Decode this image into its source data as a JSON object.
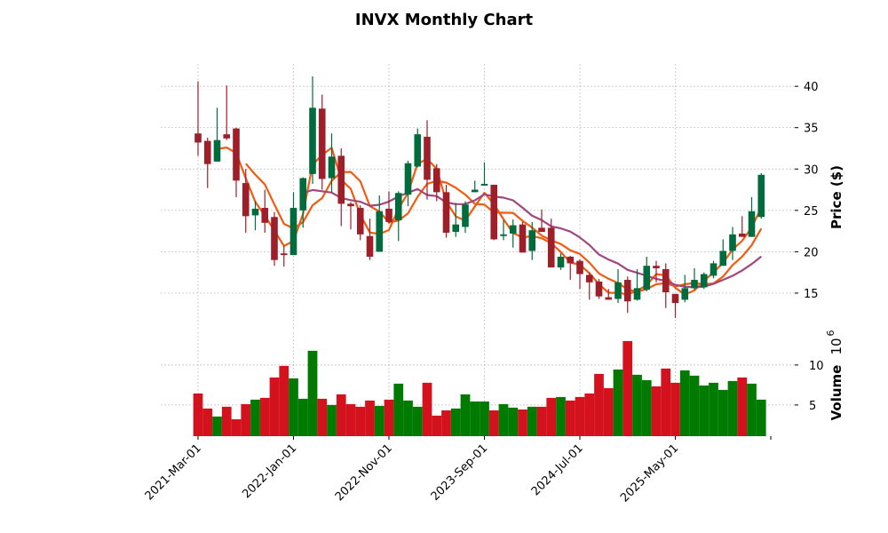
{
  "chart_data": {
    "type": "candlestick",
    "title": "INVX Monthly Chart",
    "ylabel": "Price ($)",
    "volume_label": "Volume",
    "volume_exponent": "6",
    "volume_base": "10",
    "ylim": [
      10.7,
      42.7
    ],
    "volume_ylim": [
      1.1,
      14.1
    ],
    "yticks": [
      15,
      20,
      25,
      30,
      35,
      40
    ],
    "volume_yticks": [
      5,
      10
    ],
    "grid": true,
    "start_month": "2021-03",
    "xticks": [
      {
        "index": 0,
        "label": "2021-Mar-01"
      },
      {
        "index": 10,
        "label": "2022-Jan-01"
      },
      {
        "index": 20,
        "label": "2022-Nov-01"
      },
      {
        "index": 30,
        "label": "2023-Sep-01"
      },
      {
        "index": 40,
        "label": "2024-Jul-01"
      },
      {
        "index": 50,
        "label": "2025-May-01"
      },
      {
        "index": 60,
        "label": ""
      }
    ],
    "moving_averages": [
      {
        "period": 3,
        "color": "#f15a0f"
      },
      {
        "period": 6,
        "color": "#f15a0f"
      },
      {
        "period": 12,
        "color": "#a2477d"
      }
    ],
    "colors": {
      "up": "#006b3c",
      "down": "#9c1f2a",
      "vol_up": "#007a00",
      "vol_down": "#d3121d"
    },
    "ohlc": [
      [
        34.3,
        40.6,
        31.6,
        33.2
      ],
      [
        33.4,
        33.8,
        27.7,
        30.6
      ],
      [
        30.9,
        37.4,
        30.9,
        33.5
      ],
      [
        34.2,
        40.1,
        33.5,
        33.7
      ],
      [
        34.9,
        35.0,
        26.6,
        28.6
      ],
      [
        28.3,
        30.0,
        22.3,
        24.3
      ],
      [
        24.4,
        26.1,
        22.6,
        25.2
      ],
      [
        25.3,
        27.5,
        22.3,
        23.5
      ],
      [
        24.2,
        24.8,
        18.3,
        19.0
      ],
      [
        19.8,
        20.7,
        18.2,
        19.6
      ],
      [
        19.6,
        27.2,
        19.6,
        25.3
      ],
      [
        25.0,
        29.0,
        22.9,
        28.9
      ],
      [
        29.4,
        41.2,
        28.2,
        37.4
      ],
      [
        37.3,
        39.0,
        27.5,
        28.8
      ],
      [
        28.9,
        34.3,
        27.2,
        31.5
      ],
      [
        31.6,
        32.5,
        23.1,
        25.8
      ],
      [
        25.8,
        26.0,
        22.7,
        25.5
      ],
      [
        25.3,
        25.6,
        21.4,
        22.1
      ],
      [
        21.9,
        24.0,
        19.0,
        19.4
      ],
      [
        20.0,
        26.8,
        20.0,
        24.9
      ],
      [
        25.2,
        27.3,
        23.4,
        23.6
      ],
      [
        23.8,
        27.3,
        21.3,
        27.1
      ],
      [
        26.9,
        31.0,
        25.5,
        30.7
      ],
      [
        30.3,
        34.9,
        30.2,
        34.2
      ],
      [
        33.9,
        35.9,
        26.3,
        28.7
      ],
      [
        30.1,
        30.6,
        26.1,
        27.2
      ],
      [
        27.2,
        28.1,
        21.7,
        22.3
      ],
      [
        22.4,
        25.9,
        21.8,
        23.3
      ],
      [
        23.0,
        26.1,
        22.3,
        25.7
      ],
      [
        27.2,
        28.6,
        27.2,
        27.5
      ],
      [
        28.0,
        30.8,
        28.0,
        28.2
      ],
      [
        28.1,
        28.1,
        21.4,
        21.5
      ],
      [
        21.9,
        23.8,
        21.4,
        22.1
      ],
      [
        22.2,
        23.9,
        20.5,
        23.2
      ],
      [
        23.3,
        23.6,
        19.9,
        19.9
      ],
      [
        20.1,
        23.6,
        19.0,
        22.6
      ],
      [
        22.9,
        25.1,
        22.4,
        22.4
      ],
      [
        22.9,
        24.0,
        18.1,
        18.1
      ],
      [
        18.1,
        19.8,
        17.8,
        19.4
      ],
      [
        19.4,
        19.5,
        16.6,
        18.6
      ],
      [
        18.9,
        19.1,
        15.5,
        17.3
      ],
      [
        17.2,
        17.5,
        14.2,
        16.3
      ],
      [
        16.4,
        16.7,
        14.3,
        14.6
      ],
      [
        14.5,
        15.5,
        14.2,
        14.2
      ],
      [
        14.3,
        17.9,
        13.8,
        16.3
      ],
      [
        16.6,
        17.0,
        12.6,
        14.0
      ],
      [
        14.2,
        17.9,
        14.1,
        15.6
      ],
      [
        15.4,
        19.4,
        15.2,
        18.3
      ],
      [
        18.3,
        18.9,
        16.3,
        18.0
      ],
      [
        17.9,
        18.6,
        13.2,
        15.1
      ],
      [
        14.9,
        14.9,
        12.0,
        13.8
      ],
      [
        14.2,
        17.2,
        13.9,
        15.6
      ],
      [
        15.6,
        18.0,
        15.4,
        16.6
      ],
      [
        15.7,
        17.5,
        15.5,
        17.3
      ],
      [
        17.1,
        18.9,
        16.8,
        18.6
      ],
      [
        18.3,
        21.5,
        18.3,
        20.1
      ],
      [
        20.1,
        23.0,
        19.0,
        22.1
      ],
      [
        22.2,
        24.3,
        21.8,
        21.8
      ],
      [
        21.8,
        26.6,
        21.8,
        24.9
      ],
      [
        24.2,
        29.5,
        24.0,
        29.3
      ]
    ],
    "volume_millions": [
      6.44,
      4.56,
      3.56,
      4.78,
      3.22,
      5.11,
      5.67,
      5.89,
      8.44,
      9.89,
      8.33,
      5.78,
      11.78,
      5.78,
      5.0,
      6.33,
      5.11,
      4.78,
      5.56,
      4.89,
      5.67,
      7.67,
      5.56,
      4.78,
      7.78,
      3.67,
      4.33,
      4.56,
      6.33,
      5.44,
      5.44,
      4.33,
      5.11,
      4.67,
      4.44,
      4.78,
      4.78,
      5.89,
      6.0,
      5.56,
      6.0,
      6.44,
      8.89,
      7.11,
      9.44,
      13.0,
      8.78,
      8.11,
      7.33,
      9.56,
      7.78,
      9.33,
      8.67,
      7.44,
      7.78,
      6.89,
      8.0,
      8.44,
      7.67,
      5.67
    ]
  }
}
